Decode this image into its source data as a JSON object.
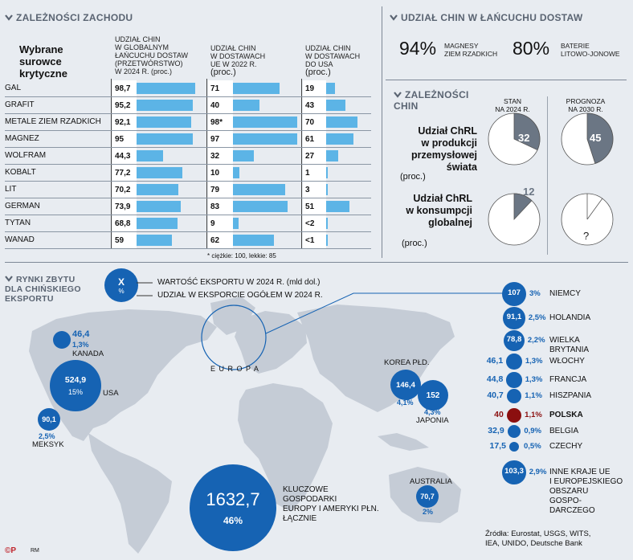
{
  "west_dependencies": {
    "title": "ZALEŻNOŚCI ZACHODU",
    "row_header": "Wybrane surowce krytyczne",
    "col1_header_a": "UDZIAŁ CHIN",
    "col1_header_b": "W GLOBALNYM",
    "col1_header_c": "ŁAŃCUCHU DOSTAW",
    "col1_header_d": "(PRZETWÓRSTWO)",
    "col1_header_e": "W 2024 R. (proc.)",
    "col2_header_a": "UDZIAŁ CHIN",
    "col2_header_b": "W DOSTAWACH",
    "col2_header_c": "UE W 2022 R.",
    "col2_header_d": "(proc.)",
    "col3_header_a": "UDZIAŁ CHIN",
    "col3_header_b": "W DOSTAWACH",
    "col3_header_c": "DO USA",
    "col3_header_d": "(proc.)",
    "footnote": "* ciężkie: 100, lekkie: 85"
  },
  "chart_data": [
    {
      "type": "table",
      "title": "ZALEŻNOŚCI ZACHODU",
      "columns": [
        "Udział Chin w globalnym łańcuchu dostaw (przetwórstwo) w 2024 r. (proc.)",
        "Udział Chin w dostawach UE w 2022 r. (proc.)",
        "Udział Chin w dostawach do USA (proc.)"
      ],
      "rows": [
        {
          "name": "GAL",
          "global": 98.7,
          "global_label": "98,7",
          "eu": 71,
          "eu_label": "71",
          "usa": 19,
          "usa_label": "19"
        },
        {
          "name": "GRAFIT",
          "global": 95.2,
          "global_label": "95,2",
          "eu": 40,
          "eu_label": "40",
          "usa": 43,
          "usa_label": "43"
        },
        {
          "name": "METALE ZIEM RZADKICH",
          "global": 92.1,
          "global_label": "92,1",
          "eu": 98,
          "eu_label": "98*",
          "usa": 70,
          "usa_label": "70"
        },
        {
          "name": "MAGNEZ",
          "global": 95,
          "global_label": "95",
          "eu": 97,
          "eu_label": "97",
          "usa": 61,
          "usa_label": "61"
        },
        {
          "name": "WOLFRAM",
          "global": 44.3,
          "global_label": "44,3",
          "eu": 32,
          "eu_label": "32",
          "usa": 27,
          "usa_label": "27"
        },
        {
          "name": "KOBALT",
          "global": 77.2,
          "global_label": "77,2",
          "eu": 10,
          "eu_label": "10",
          "usa": 1,
          "usa_label": "1"
        },
        {
          "name": "LIT",
          "global": 70.2,
          "global_label": "70,2",
          "eu": 79,
          "eu_label": "79",
          "usa": 3,
          "usa_label": "3"
        },
        {
          "name": "GERMAN",
          "global": 73.9,
          "global_label": "73,9",
          "eu": 83,
          "eu_label": "83",
          "usa": 51,
          "usa_label": "51"
        },
        {
          "name": "TYTAN",
          "global": 68.8,
          "global_label": "68,8",
          "eu": 9,
          "eu_label": "9",
          "usa": 1.5,
          "usa_label": "<2"
        },
        {
          "name": "WANAD",
          "global": 59,
          "global_label": "59",
          "eu": 62,
          "eu_label": "62",
          "usa": 0.5,
          "usa_label": "<1"
        }
      ]
    },
    {
      "type": "pie",
      "title": "Udział ChRL w produkcji przemysłowej świata (proc.)",
      "slices": [
        {
          "label": "STAN NA 2024 R.",
          "value": 32
        },
        {
          "label": "PROGNOZA NA 2030 R.",
          "value": 45
        }
      ]
    },
    {
      "type": "pie",
      "title": "Udział ChRL w konsumpcji globalnej (proc.)",
      "slices": [
        {
          "label": "STAN NA 2024 R.",
          "value": 12
        },
        {
          "label": "PROGNOZA NA 2030 R.",
          "value": null
        }
      ]
    },
    {
      "type": "scatter",
      "title": "RYNKI ZBYTU DLA CHIŃSKIEGO EKSPORTU",
      "points": [
        {
          "name": "KANADA",
          "value": 46.4,
          "share": 1.3
        },
        {
          "name": "USA",
          "value": 524.9,
          "share": 15
        },
        {
          "name": "MEKSYK",
          "value": 90.1,
          "share": 2.5
        },
        {
          "name": "KOREA PŁD.",
          "value": 146.4,
          "share": 4.1
        },
        {
          "name": "JAPONIA",
          "value": 152,
          "share": 4.3
        },
        {
          "name": "AUSTRALIA",
          "value": 70.7,
          "share": 2
        },
        {
          "name": "KLUCZOWE GOSPODARKI EUROPY I AMERYKI PŁN. ŁĄCZNIE",
          "value": 1632.7,
          "share": 46
        },
        {
          "name": "NIEMCY",
          "value": 107,
          "share": 3
        },
        {
          "name": "HOLANDIA",
          "value": 91.1,
          "share": 2.5
        },
        {
          "name": "WIELKA BRYTANIA",
          "value": 78.8,
          "share": 2.2
        },
        {
          "name": "WŁOCHY",
          "value": 46.1,
          "share": 1.3
        },
        {
          "name": "FRANCJA",
          "value": 44.8,
          "share": 1.3
        },
        {
          "name": "HISZPANIA",
          "value": 40.7,
          "share": 1.1
        },
        {
          "name": "POLSKA",
          "value": 40,
          "share": 1.1
        },
        {
          "name": "BELGIA",
          "value": 32.9,
          "share": 0.9
        },
        {
          "name": "CZECHY",
          "value": 17.5,
          "share": 0.5
        },
        {
          "name": "INNE KRAJE UE I EUROPEJSKIEGO OBSZARU GOSPODARCZEGO",
          "value": 103.3,
          "share": 2.9
        }
      ]
    }
  ],
  "supply_chain": {
    "title": "UDZIAŁ CHIN W ŁAŃCUCHU DOSTAW",
    "magnets_pct": "94%",
    "magnets_label_a": "MAGNESY",
    "magnets_label_b": "ZIEM RZADKICH",
    "batteries_pct": "80%",
    "batteries_label_a": "BATERIE",
    "batteries_label_b": "LITOWO-JONOWE"
  },
  "china_dependencies": {
    "title_a": "ZALEŻNOŚCI",
    "title_b": "CHIN",
    "col_a_1": "STAN",
    "col_a_2": "NA 2024 R.",
    "col_b_1": "PROGNOZA",
    "col_b_2": "NA 2030 R.",
    "prod_label_1": "Udział ChRL",
    "prod_label_2": "w produkcji",
    "prod_label_3": "przemysłowej",
    "prod_label_4": "świata",
    "prod_unit": "(proc.)",
    "prod_2024": "32",
    "prod_2030": "45",
    "cons_label_1": "Udział ChRL",
    "cons_label_2": "w konsumpcji",
    "cons_label_3": "globalnej",
    "cons_unit": "(proc.)",
    "cons_2024": "12",
    "cons_2030": "?"
  },
  "markets": {
    "title_a": "RYNKI ZBYTU",
    "title_b": "DLA CHIŃSKIEGO",
    "title_c": "EKSPORTU",
    "legend_x": "X",
    "legend_pct": "%",
    "legend_value": "WARTOŚĆ EKSPORTU W 2024 R. (mld dol.)",
    "legend_share": "UDZIAŁ W EKSPORCIE OGÓŁEM W 2024 R.",
    "europa": "E U R O P A",
    "canada_value": "46,4",
    "canada_share": "1,3%",
    "canada_name": "KANADA",
    "usa_value": "524,9",
    "usa_share": "15%",
    "usa_name": "USA",
    "mexico_value": "90,1",
    "mexico_share": "2,5%",
    "mexico_name": "MEKSYK",
    "korea_name": "KOREA PŁD.",
    "korea_value": "146,4",
    "korea_share": "4,1%",
    "japan_value": "152",
    "japan_share": "4,3%",
    "japan_name": "JAPONIA",
    "australia_name": "AUSTRALIA",
    "australia_value": "70,7",
    "australia_share": "2%",
    "key_value": "1632,7",
    "key_share": "46%",
    "key_label_1": "KLUCZOWE",
    "key_label_2": "GOSPODARKI",
    "key_label_3": "EUROPY I AMERYKI PŁN.",
    "key_label_4": "ŁĄCZNIE"
  },
  "europe_list": [
    {
      "value": "107",
      "share": "3%",
      "name": "NIEMCY"
    },
    {
      "value": "91,1",
      "share": "2,5%",
      "name": "HOLANDIA"
    },
    {
      "value": "78,8",
      "share": "2,2%",
      "name": "WIELKA",
      "name2": "BRYTANIA"
    },
    {
      "value": "46,1",
      "share": "1,3%",
      "name": "WŁOCHY"
    },
    {
      "value": "44,8",
      "share": "1,3%",
      "name": "FRANCJA"
    },
    {
      "value": "40,7",
      "share": "1,1%",
      "name": "HISZPANIA"
    },
    {
      "value": "40",
      "share": "1,1%",
      "name": "POLSKA"
    },
    {
      "value": "32,9",
      "share": "0,9%",
      "name": "BELGIA"
    },
    {
      "value": "17,5",
      "share": "0,5%",
      "name": "CZECHY"
    },
    {
      "value": "103,3",
      "share": "2,9%",
      "name": "INNE KRAJE UE",
      "name2": "I EUROPEJSKIEGO",
      "name3": "OBSZARU",
      "name4": "GOSPO-",
      "name5": "DARCZEGO"
    }
  ],
  "sources": {
    "line1": "Źródła: Eurostat, USGS, WITS,",
    "line2": "IEA, UNIDO, Deutsche Bank"
  },
  "credit": {
    "logo": "©P",
    "initials": "RM"
  },
  "colors": {
    "bar": "#5cb4e6",
    "bubble": "#1663b3",
    "poland": "#8b0f0f",
    "pie_fill": "#6b7684",
    "map": "#c5ccd6"
  }
}
